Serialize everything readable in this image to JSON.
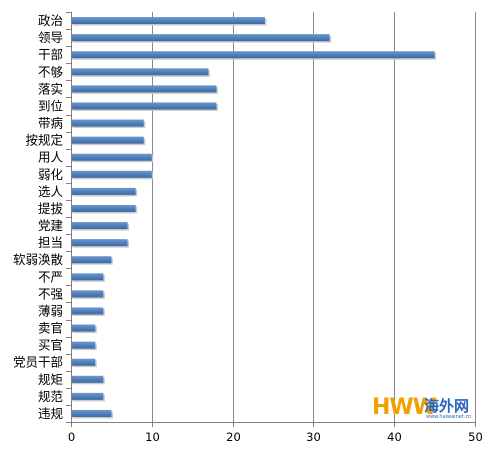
{
  "chart_data": {
    "type": "bar",
    "orientation": "horizontal",
    "title": "",
    "xlabel": "",
    "ylabel": "",
    "categories": [
      "政治",
      "领导",
      "干部",
      "不够",
      "落实",
      "到位",
      "带病",
      "按规定",
      "用人",
      "弱化",
      "选人",
      "提拔",
      "党建",
      "担当",
      "软弱涣散",
      "不严",
      "不强",
      "薄弱",
      "卖官",
      "买官",
      "党员干部",
      "规矩",
      "规范",
      "违规"
    ],
    "values": [
      24,
      32,
      45,
      17,
      18,
      18,
      9,
      9,
      10,
      10,
      8,
      8,
      7,
      7,
      5,
      4,
      4,
      4,
      3,
      3,
      3,
      4,
      4,
      5
    ],
    "xlim": [
      0,
      50
    ],
    "xticks": [
      0,
      10,
      20,
      30,
      40,
      50
    ],
    "grid": "vertical",
    "bar_color": "#4f81bd",
    "legend": "none"
  },
  "watermark": {
    "brand": "HWW",
    "name": "海外网",
    "url": "www.haiwainet.cn"
  }
}
